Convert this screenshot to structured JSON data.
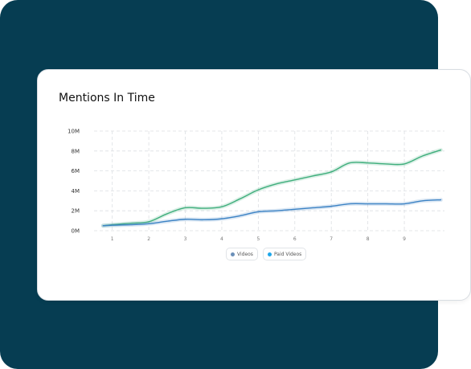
{
  "card": {
    "title": "Mentions In Time"
  },
  "colors": {
    "backdrop": "#063d52",
    "series_colors": [
      "#3fae7c",
      "#3b82c4"
    ],
    "legend_dots": [
      "#6b8fb8",
      "#1ea7ea"
    ]
  },
  "legend": {
    "items": [
      {
        "label": "Videos"
      },
      {
        "label": "Paid Videos"
      }
    ]
  },
  "chart_data": {
    "type": "line",
    "title": "Mentions In Time",
    "xlabel": "",
    "ylabel": "",
    "x": [
      0.75,
      1,
      1.5,
      2,
      2.5,
      3,
      3.5,
      4,
      4.5,
      5,
      5.5,
      6,
      6.5,
      7,
      7.5,
      8,
      8.5,
      9,
      9.5,
      10
    ],
    "xticks": [
      "1",
      "2",
      "3",
      "4",
      "5",
      "6",
      "7",
      "8",
      "9"
    ],
    "xlim": [
      0.5,
      10.1
    ],
    "ylim": [
      0,
      10
    ],
    "yticks": [
      "0M",
      "2M",
      "4M",
      "6M",
      "8M",
      "10M"
    ],
    "grid": true,
    "legend_position": "bottom-center",
    "series": [
      {
        "values": [
          0.5,
          0.6,
          0.75,
          0.9,
          1.7,
          2.3,
          2.25,
          2.4,
          3.2,
          4.1,
          4.7,
          5.1,
          5.5,
          5.9,
          6.8,
          6.8,
          6.7,
          6.7,
          7.5,
          8.1
        ]
      },
      {
        "values": [
          0.5,
          0.55,
          0.6,
          0.7,
          0.95,
          1.15,
          1.1,
          1.2,
          1.5,
          1.9,
          2.0,
          2.15,
          2.3,
          2.45,
          2.7,
          2.7,
          2.7,
          2.7,
          3.0,
          3.1
        ]
      }
    ]
  }
}
